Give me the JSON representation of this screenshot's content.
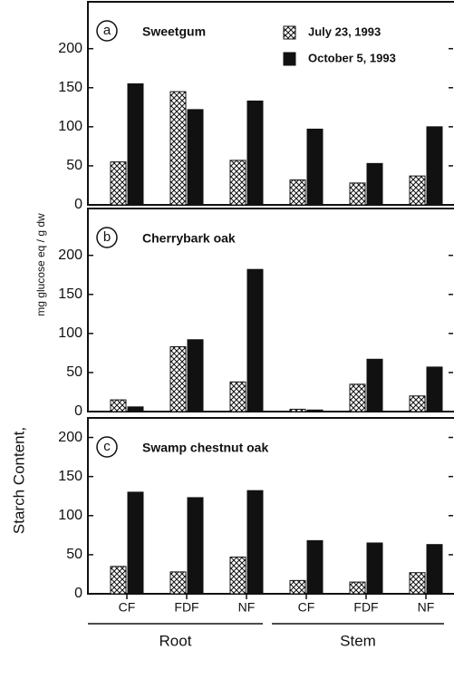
{
  "ylabel": "Starch Content,",
  "ylabel_units": "mg glucose eq / g dw",
  "chart_data": [
    {
      "type": "bar",
      "panel": "a",
      "title": "Sweetgum",
      "legend": "top-right",
      "ylim": [
        0,
        260
      ],
      "yticks": [
        0,
        50,
        100,
        150,
        200
      ],
      "series": [
        {
          "name": "July 23, 1993",
          "color": "#111111",
          "pattern": "crosshatch",
          "values": [
            55,
            145,
            57,
            32,
            28,
            37
          ]
        },
        {
          "name": "October 5, 1993",
          "color": "#111111",
          "pattern": "solid",
          "values": [
            155,
            122,
            133,
            97,
            53,
            100
          ]
        }
      ]
    },
    {
      "type": "bar",
      "panel": "b",
      "title": "Cherrybark oak",
      "ylim": [
        0,
        260
      ],
      "yticks": [
        0,
        50,
        100,
        150,
        200
      ],
      "series": [
        {
          "color": "#111111",
          "pattern": "crosshatch",
          "values": [
            15,
            83,
            38,
            3,
            35,
            20
          ]
        },
        {
          "color": "#111111",
          "pattern": "solid",
          "values": [
            6,
            92,
            182,
            2,
            67,
            57
          ]
        }
      ]
    },
    {
      "type": "bar",
      "panel": "c",
      "title": "Swamp chestnut oak",
      "ylim": [
        0,
        225
      ],
      "yticks": [
        0,
        50,
        100,
        150,
        200
      ],
      "categories": [
        "CF",
        "FDF",
        "NF",
        "CF",
        "FDF",
        "NF"
      ],
      "groups": [
        "Root",
        "Stem"
      ],
      "series": [
        {
          "color": "#111111",
          "pattern": "crosshatch",
          "values": [
            35,
            28,
            47,
            17,
            15,
            27
          ]
        },
        {
          "color": "#111111",
          "pattern": "solid",
          "values": [
            130,
            123,
            132,
            68,
            65,
            63
          ]
        }
      ]
    }
  ]
}
